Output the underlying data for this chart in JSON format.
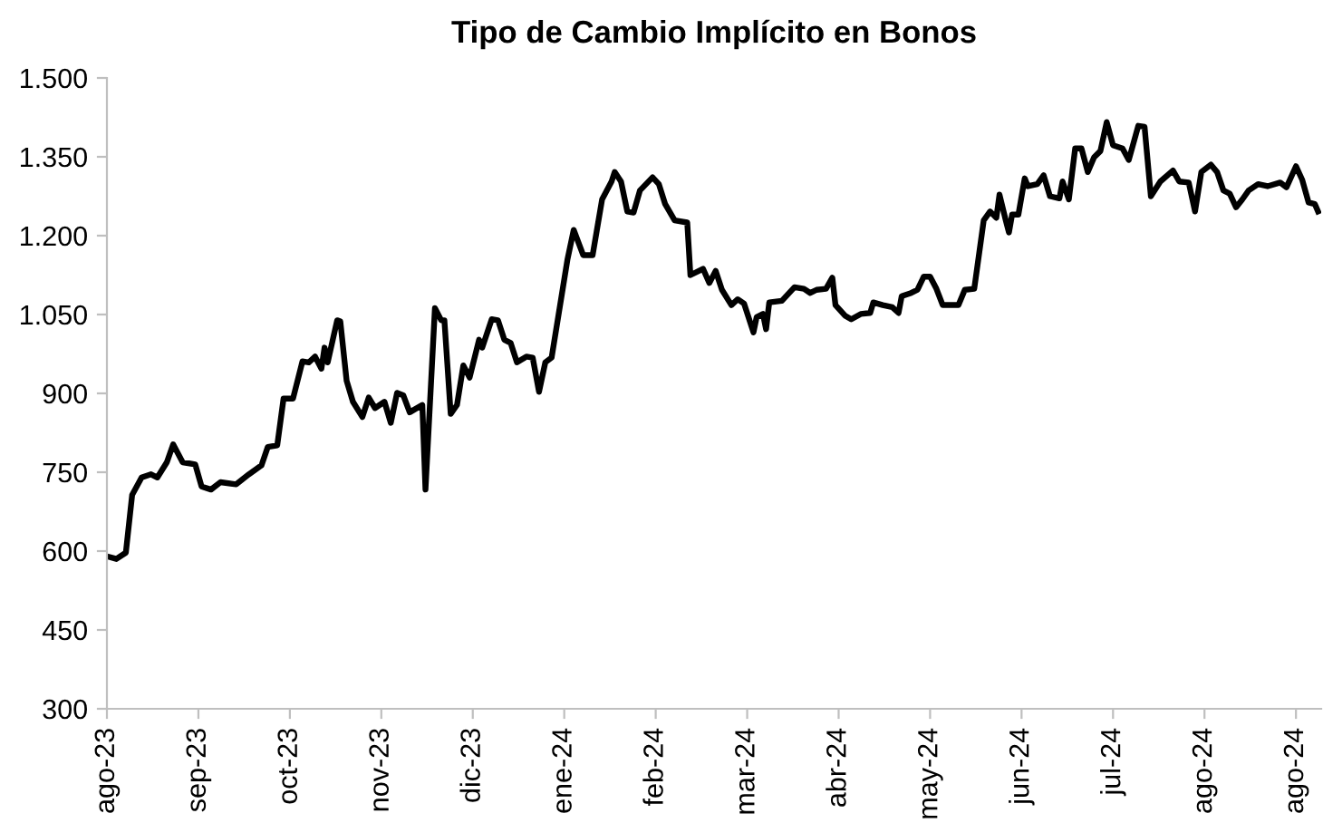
{
  "chart_data": {
    "type": "line",
    "title": "Tipo de Cambio Implícito en Bonos",
    "x": [
      "2023-08-19",
      "2023-08-22",
      "2023-08-25",
      "2023-08-27",
      "2023-08-30",
      "2023-09-02",
      "2023-09-04",
      "2023-09-07",
      "2023-09-09",
      "2023-09-12",
      "2023-09-16",
      "2023-09-18",
      "2023-09-21",
      "2023-09-24",
      "2023-09-29",
      "2023-10-03",
      "2023-10-07",
      "2023-10-09",
      "2023-10-12",
      "2023-10-14",
      "2023-10-17",
      "2023-10-20",
      "2023-10-22",
      "2023-10-24",
      "2023-10-26",
      "2023-10-27",
      "2023-10-28",
      "2023-10-31",
      "2023-11-01",
      "2023-11-03",
      "2023-11-05",
      "2023-11-08",
      "2023-11-10",
      "2023-11-12",
      "2023-11-15",
      "2023-11-17",
      "2023-11-19",
      "2023-11-21",
      "2023-11-23",
      "2023-11-27",
      "2023-11-28",
      "2023-12-01",
      "2023-12-03",
      "2023-12-04",
      "2023-12-06",
      "2023-12-08",
      "2023-12-10",
      "2023-12-12",
      "2023-12-15",
      "2023-12-16",
      "2023-12-19",
      "2023-12-21",
      "2023-12-23",
      "2023-12-25",
      "2023-12-27",
      "2023-12-30",
      "2024-01-01",
      "2024-01-03",
      "2024-01-05",
      "2024-01-07",
      "2024-01-12",
      "2024-01-14",
      "2024-01-17",
      "2024-01-20",
      "2024-01-23",
      "2024-01-26",
      "2024-01-27",
      "2024-01-29",
      "2024-01-31",
      "2024-02-02",
      "2024-02-04",
      "2024-02-08",
      "2024-02-10",
      "2024-02-12",
      "2024-02-15",
      "2024-02-19",
      "2024-02-20",
      "2024-02-24",
      "2024-02-26",
      "2024-02-28",
      "2024-03-01",
      "2024-03-04",
      "2024-03-06",
      "2024-03-08",
      "2024-03-11",
      "2024-03-12",
      "2024-03-14",
      "2024-03-15",
      "2024-03-16",
      "2024-03-20",
      "2024-03-24",
      "2024-03-27",
      "2024-03-29",
      "2024-03-31",
      "2024-04-03",
      "2024-04-05",
      "2024-04-06",
      "2024-04-09",
      "2024-04-11",
      "2024-04-14",
      "2024-04-17",
      "2024-04-18",
      "2024-04-21",
      "2024-04-24",
      "2024-04-26",
      "2024-04-27",
      "2024-04-30",
      "2024-05-02",
      "2024-05-04",
      "2024-05-06",
      "2024-05-08",
      "2024-05-10",
      "2024-05-15",
      "2024-05-17",
      "2024-05-20",
      "2024-05-23",
      "2024-05-25",
      "2024-05-27",
      "2024-05-28",
      "2024-05-30",
      "2024-05-31",
      "2024-06-01",
      "2024-06-03",
      "2024-06-05",
      "2024-06-06",
      "2024-06-09",
      "2024-06-11",
      "2024-06-13",
      "2024-06-16",
      "2024-06-17",
      "2024-06-19",
      "2024-06-21",
      "2024-06-23",
      "2024-06-25",
      "2024-06-27",
      "2024-06-29",
      "2024-07-01",
      "2024-07-03",
      "2024-07-06",
      "2024-07-08",
      "2024-07-11",
      "2024-07-13",
      "2024-07-15",
      "2024-07-18",
      "2024-07-22",
      "2024-07-24",
      "2024-07-27",
      "2024-07-29",
      "2024-07-31",
      "2024-08-03",
      "2024-08-05",
      "2024-08-07",
      "2024-08-09",
      "2024-08-11",
      "2024-08-13",
      "2024-08-15",
      "2024-08-18",
      "2024-08-21",
      "2024-08-25",
      "2024-08-27",
      "2024-08-30",
      "2024-09-01",
      "2024-09-03",
      "2024-09-05",
      "2024-09-06"
    ],
    "series": [
      {
        "color": "#000000",
        "values": [
          590,
          585,
          597,
          707,
          740,
          746,
          740,
          769,
          803,
          769,
          765,
          723,
          717,
          731,
          727,
          746,
          763,
          798,
          801,
          890,
          890,
          961,
          959,
          970,
          947,
          987,
          959,
          1039,
          1037,
          924,
          884,
          855,
          892,
          872,
          884,
          844,
          901,
          896,
          864,
          878,
          717,
          1062,
          1039,
          1039,
          861,
          878,
          953,
          930,
          1002,
          987,
          1041,
          1039,
          1002,
          996,
          959,
          970,
          968,
          903,
          959,
          968,
          1154,
          1211,
          1163,
          1163,
          1269,
          1303,
          1321,
          1303,
          1246,
          1244,
          1286,
          1311,
          1298,
          1260,
          1229,
          1225,
          1125,
          1137,
          1110,
          1133,
          1097,
          1068,
          1079,
          1071,
          1016,
          1045,
          1051,
          1022,
          1073,
          1076,
          1102,
          1099,
          1091,
          1097,
          1099,
          1120,
          1068,
          1048,
          1041,
          1051,
          1053,
          1073,
          1068,
          1064,
          1053,
          1085,
          1091,
          1097,
          1122,
          1122,
          1099,
          1068,
          1068,
          1097,
          1099,
          1229,
          1246,
          1234,
          1278,
          1229,
          1206,
          1240,
          1240,
          1309,
          1294,
          1298,
          1315,
          1275,
          1271,
          1303,
          1269,
          1366,
          1366,
          1321,
          1349,
          1361,
          1416,
          1372,
          1366,
          1344,
          1409,
          1407,
          1275,
          1303,
          1324,
          1303,
          1301,
          1246,
          1321,
          1335,
          1321,
          1286,
          1280,
          1254,
          1269,
          1286,
          1298,
          1294,
          1301,
          1292,
          1332,
          1306,
          1263,
          1260,
          1246
        ]
      }
    ],
    "xlim": [
      "2023-08-19",
      "2024-09-07"
    ],
    "xticks": [
      {
        "value": "2023-08-19",
        "label": "ago-23"
      },
      {
        "value": "2023-09-17",
        "label": "sep-23"
      },
      {
        "value": "2023-10-16",
        "label": "oct-23"
      },
      {
        "value": "2023-11-14",
        "label": "nov-23"
      },
      {
        "value": "2023-12-13",
        "label": "dic-23"
      },
      {
        "value": "2024-01-11",
        "label": "ene-24"
      },
      {
        "value": "2024-02-09",
        "label": "feb-24"
      },
      {
        "value": "2024-03-09",
        "label": "mar-24"
      },
      {
        "value": "2024-04-07",
        "label": "abr-24"
      },
      {
        "value": "2024-05-06",
        "label": "may-24"
      },
      {
        "value": "2024-06-04",
        "label": "jun-24"
      },
      {
        "value": "2024-07-03",
        "label": "jul-24"
      },
      {
        "value": "2024-08-01",
        "label": "ago-24"
      },
      {
        "value": "2024-08-30",
        "label": "ago-24"
      }
    ],
    "ylim": [
      300,
      1500
    ],
    "yticks": [
      300,
      450,
      600,
      750,
      900,
      {
        "value": 1050,
        "label": "1.050"
      },
      {
        "value": 1200,
        "label": "1.200"
      },
      {
        "value": 1350,
        "label": "1.350"
      },
      {
        "value": 1500,
        "label": "1.500"
      }
    ],
    "grid": false,
    "legend": false,
    "marker": "none",
    "line_style": "solid"
  }
}
